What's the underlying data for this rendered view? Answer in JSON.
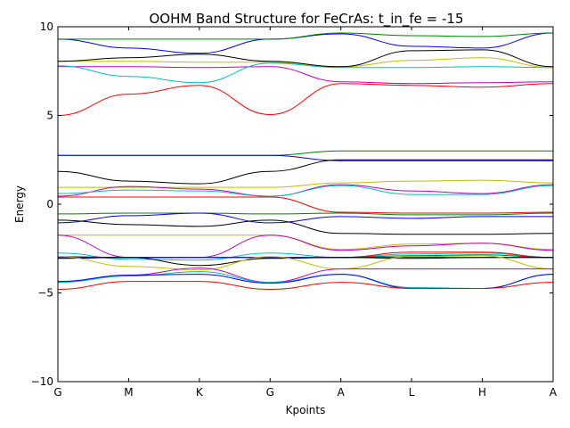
{
  "chart_data": {
    "type": "line",
    "title": "OOHM Band Structure for FeCrAs: t_in_fe = -15",
    "xlabel": "Kpoints",
    "ylabel": "Energy",
    "xticklabels": [
      "G",
      "M",
      "K",
      "G",
      "A",
      "L",
      "H",
      "A"
    ],
    "yticks": [
      10,
      5,
      0,
      -5,
      -10
    ],
    "ylim": [
      -10,
      10
    ],
    "grid": false,
    "colors": {
      "red": "#ff0000",
      "blue": "#0000ff",
      "green": "#008000",
      "black": "#000000",
      "yellow": "#bfbf00",
      "cyan": "#00bfbf",
      "magenta": "#bf00bf"
    },
    "series": [
      {
        "color": "red",
        "values": [
          5.0,
          6.2,
          6.7,
          5.05,
          6.8,
          6.7,
          6.6,
          6.8
        ]
      },
      {
        "color": "magenta",
        "values": [
          7.75,
          7.75,
          7.7,
          7.75,
          6.9,
          6.8,
          6.85,
          6.9
        ]
      },
      {
        "color": "cyan",
        "values": [
          7.8,
          7.2,
          6.85,
          7.95,
          7.7,
          7.7,
          7.75,
          7.7
        ]
      },
      {
        "color": "yellow",
        "values": [
          8.05,
          8.05,
          8.0,
          8.0,
          7.75,
          8.1,
          8.25,
          7.7
        ]
      },
      {
        "color": "black",
        "values": [
          8.05,
          8.25,
          8.45,
          8.05,
          7.75,
          8.65,
          8.7,
          7.75
        ]
      },
      {
        "color": "blue",
        "values": [
          9.3,
          8.8,
          8.5,
          9.3,
          9.6,
          8.9,
          8.8,
          9.65
        ]
      },
      {
        "color": "green",
        "values": [
          9.3,
          9.3,
          9.3,
          9.3,
          9.65,
          9.5,
          9.45,
          9.65
        ]
      },
      {
        "color": "green",
        "values": [
          2.75,
          2.75,
          2.75,
          2.75,
          3.0,
          3.0,
          3.0,
          3.0
        ]
      },
      {
        "color": "blue",
        "values": [
          2.75,
          2.75,
          2.75,
          2.75,
          2.45,
          2.45,
          2.45,
          2.45
        ]
      },
      {
        "color": "black",
        "values": [
          1.85,
          1.3,
          1.15,
          1.85,
          2.5,
          2.5,
          2.5,
          2.5
        ]
      },
      {
        "color": "yellow",
        "values": [
          0.95,
          0.95,
          0.95,
          0.95,
          1.2,
          1.3,
          1.35,
          1.2
        ]
      },
      {
        "color": "magenta",
        "values": [
          0.45,
          1.0,
          0.85,
          0.45,
          1.1,
          0.75,
          0.6,
          1.1
        ]
      },
      {
        "color": "cyan",
        "values": [
          0.6,
          0.8,
          0.75,
          0.45,
          1.05,
          0.55,
          0.55,
          1.05
        ]
      },
      {
        "color": "red",
        "values": [
          0.4,
          0.4,
          0.4,
          0.4,
          -0.45,
          -0.5,
          -0.5,
          -0.45
        ]
      },
      {
        "color": "green",
        "values": [
          -0.55,
          -0.5,
          -0.5,
          -0.55,
          -0.5,
          -0.6,
          -0.6,
          -0.5
        ]
      },
      {
        "color": "blue",
        "values": [
          -1.05,
          -0.65,
          -0.5,
          -1.05,
          -0.7,
          -0.8,
          -0.7,
          -0.7
        ]
      },
      {
        "color": "black",
        "values": [
          -0.9,
          -1.15,
          -1.25,
          -0.9,
          -1.65,
          -1.7,
          -1.7,
          -1.65
        ]
      },
      {
        "color": "yellow",
        "values": [
          -1.75,
          -1.75,
          -1.75,
          -1.75,
          -2.55,
          -2.25,
          -2.2,
          -2.55
        ]
      },
      {
        "color": "magenta",
        "values": [
          -1.75,
          -3.0,
          -3.0,
          -1.75,
          -2.6,
          -2.35,
          -2.2,
          -2.6
        ]
      },
      {
        "color": "cyan",
        "values": [
          -2.75,
          -3.1,
          -3.15,
          -2.75,
          -3.0,
          -2.8,
          -2.75,
          -3.0
        ]
      },
      {
        "color": "red",
        "values": [
          -2.95,
          -3.0,
          -3.0,
          -3.0,
          -3.0,
          -2.7,
          -2.7,
          -3.0
        ]
      },
      {
        "color": "green",
        "values": [
          -3.0,
          -3.0,
          -3.0,
          -3.0,
          -3.0,
          -2.9,
          -2.85,
          -3.0
        ]
      },
      {
        "color": "blue",
        "values": [
          -3.0,
          -3.0,
          -3.0,
          -3.0,
          -3.0,
          -3.05,
          -3.0,
          -3.0
        ]
      },
      {
        "color": "black",
        "values": [
          -3.05,
          -3.0,
          -3.45,
          -3.05,
          -3.0,
          -3.0,
          -3.0,
          -3.0
        ]
      },
      {
        "color": "yellow",
        "values": [
          -2.95,
          -3.5,
          -3.7,
          -2.95,
          -3.65,
          -2.95,
          -2.9,
          -3.65
        ]
      },
      {
        "color": "magenta",
        "values": [
          -4.4,
          -4.0,
          -3.6,
          -4.4,
          -3.65,
          -3.65,
          -3.65,
          -3.65
        ]
      },
      {
        "color": "cyan",
        "values": [
          -4.4,
          -4.05,
          -3.8,
          -4.4,
          -3.95,
          -4.7,
          -4.75,
          -3.95
        ]
      },
      {
        "color": "blue",
        "values": [
          -4.35,
          -4.0,
          -3.95,
          -4.45,
          -3.95,
          -4.75,
          -4.75,
          -3.95
        ]
      },
      {
        "color": "red",
        "values": [
          -4.8,
          -4.35,
          -4.35,
          -4.8,
          -4.4,
          -4.75,
          -4.75,
          -4.4
        ]
      }
    ]
  }
}
